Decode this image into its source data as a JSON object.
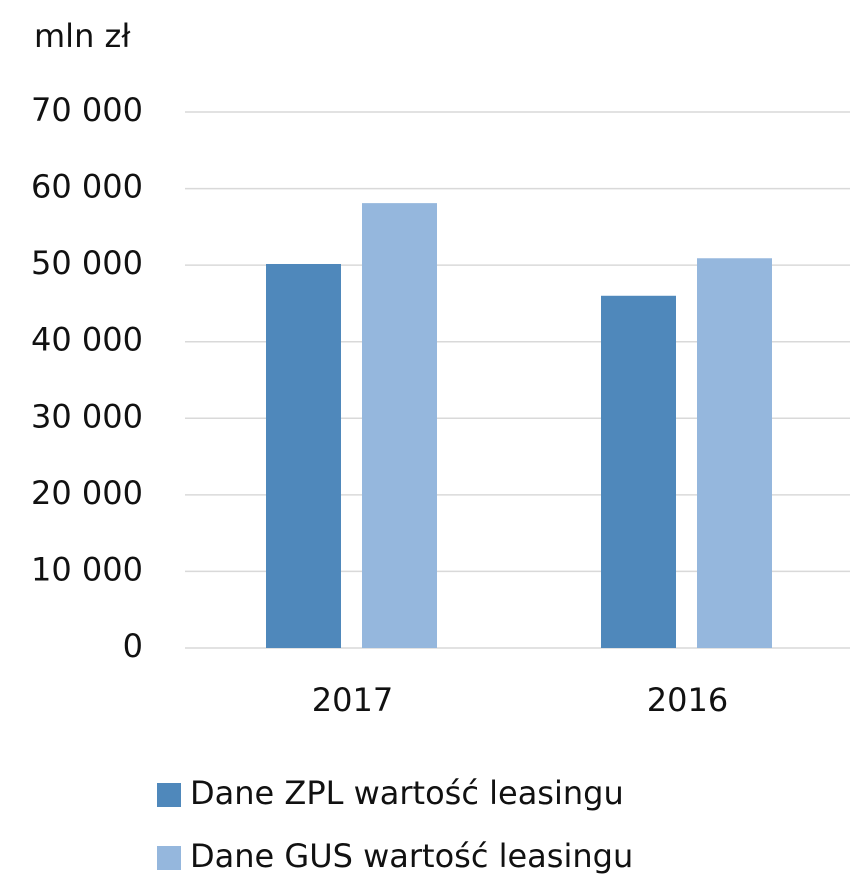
{
  "chart_data": {
    "type": "bar",
    "y_label": "mln zł",
    "categories": [
      "2017",
      "2016"
    ],
    "series": [
      {
        "name": "Dane ZPL wartość leasingu",
        "color": "#4f88bb",
        "values": [
          50150,
          46000
        ]
      },
      {
        "name": "Dane GUS wartość leasingu",
        "color": "#95b7dd",
        "values": [
          58100,
          50900
        ]
      }
    ],
    "ylim": [
      0,
      70000
    ],
    "yticks": [
      0,
      {
        "value": 10000,
        "label": "10 000"
      },
      {
        "value": 20000,
        "label": "20 000"
      },
      {
        "value": 30000,
        "label": "30 000"
      },
      {
        "value": 40000,
        "label": "40 000"
      },
      {
        "value": 50000,
        "label": "50 000"
      },
      {
        "value": 60000,
        "label": "60 000"
      },
      {
        "value": 70000,
        "label": "70 000"
      }
    ],
    "grid": true
  }
}
